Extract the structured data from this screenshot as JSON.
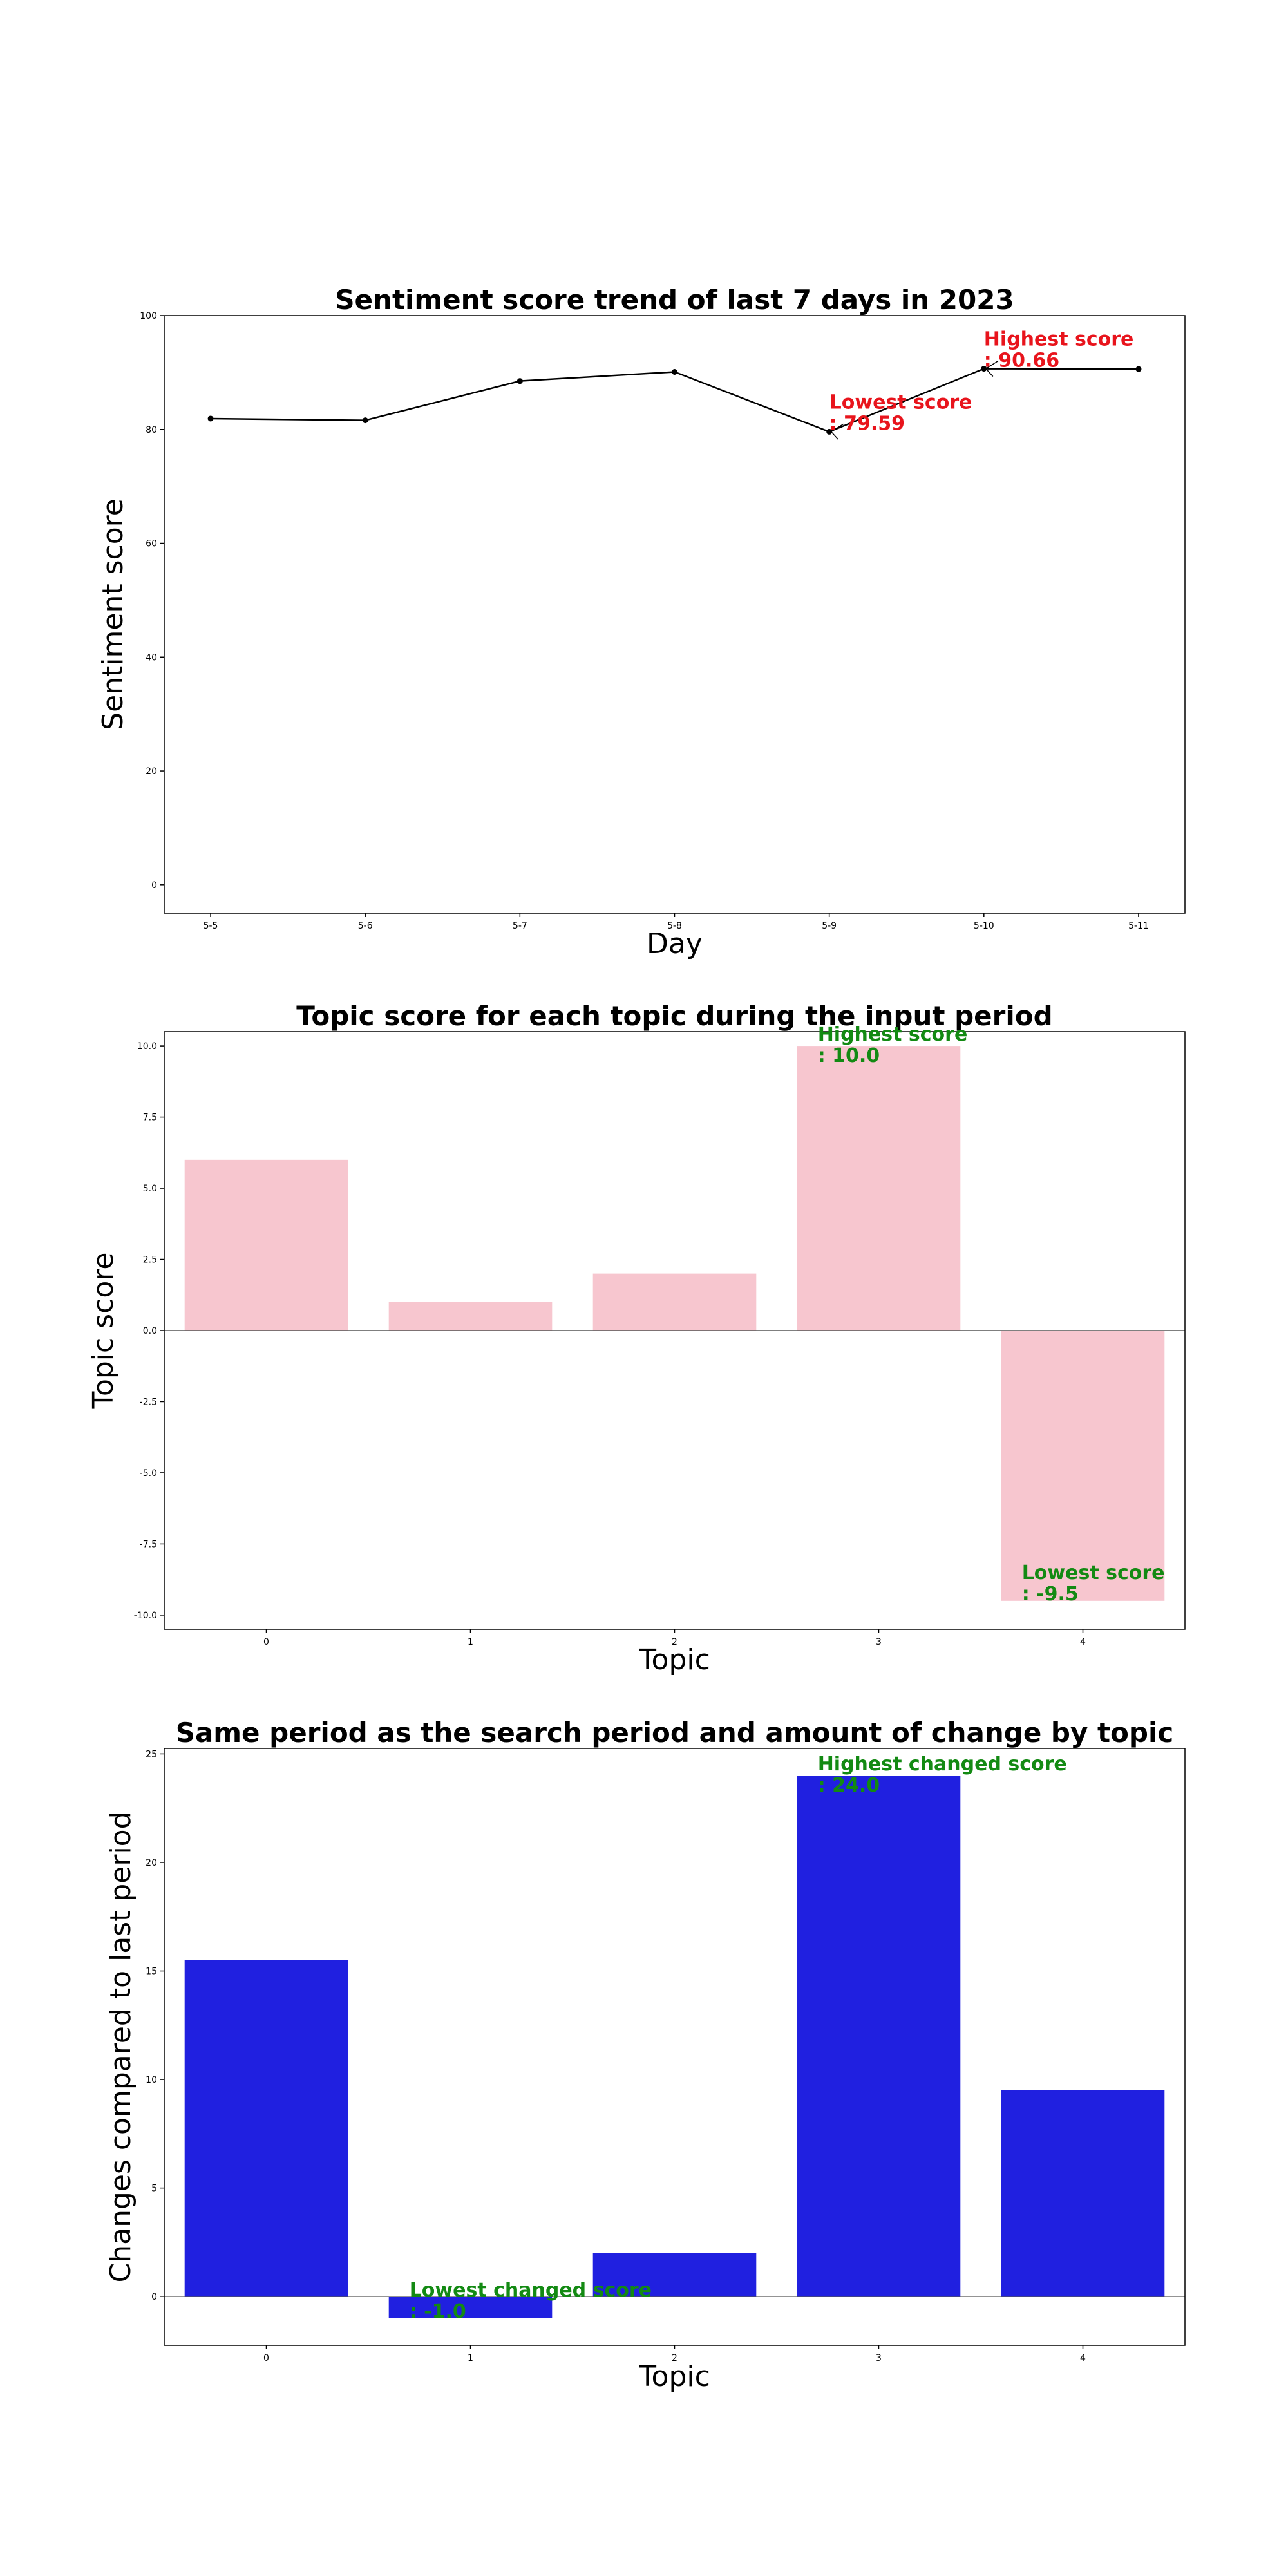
{
  "chart_data": [
    {
      "type": "line",
      "title": "Sentiment score trend of last 7 days in 2023",
      "xlabel": "Day",
      "ylabel": "Sentiment score",
      "categories": [
        "5-5",
        "5-6",
        "5-7",
        "5-8",
        "5-9",
        "5-10",
        "5-11"
      ],
      "values": [
        81.9,
        81.6,
        88.5,
        90.1,
        79.59,
        90.66,
        90.6
      ],
      "ylim": [
        -5,
        100
      ],
      "yticks": [
        0,
        20,
        40,
        60,
        80,
        100
      ],
      "grid": false,
      "line_color": "#000000",
      "annotations": [
        {
          "label": "Highest score",
          "value_text": ": 90.66",
          "index": 5,
          "color": "#e8141c"
        },
        {
          "label": "Lowest score",
          "value_text": ": 79.59",
          "index": 4,
          "color": "#e8141c"
        }
      ]
    },
    {
      "type": "bar",
      "title": "Topic score for each topic during the input period",
      "xlabel": "Topic",
      "ylabel": "Topic score",
      "categories": [
        "0",
        "1",
        "2",
        "3",
        "4"
      ],
      "values": [
        6.0,
        1.0,
        2.0,
        10.0,
        -9.5
      ],
      "ylim": [
        -10.5,
        10.5
      ],
      "yticks": [
        -10.0,
        -7.5,
        -5.0,
        -2.5,
        0.0,
        2.5,
        5.0,
        7.5,
        10.0
      ],
      "grid": false,
      "bar_color": "#f7c6cf",
      "annotations": [
        {
          "label": "Highest score",
          "value_text": ": 10.0",
          "index": 3,
          "color": "#138a13"
        },
        {
          "label": "Lowest score",
          "value_text": ": -9.5",
          "index": 4,
          "color": "#138a13"
        }
      ]
    },
    {
      "type": "bar",
      "title": "Same period as the search period and amount of change by topic",
      "xlabel": "Topic",
      "ylabel": "Changes compared to last period",
      "categories": [
        "0",
        "1",
        "2",
        "3",
        "4"
      ],
      "values": [
        15.5,
        -1.0,
        2.0,
        24.0,
        9.5
      ],
      "ylim": [
        -2.25,
        25.25
      ],
      "yticks": [
        0,
        5,
        10,
        15,
        20,
        25
      ],
      "grid": false,
      "bar_color": "#2020e0",
      "annotations": [
        {
          "label": "Highest changed score",
          "value_text": ": 24.0",
          "index": 3,
          "color": "#138a13"
        },
        {
          "label": "Lowest changed score",
          "value_text": ": -1.0",
          "index": 1,
          "color": "#138a13"
        }
      ]
    }
  ]
}
